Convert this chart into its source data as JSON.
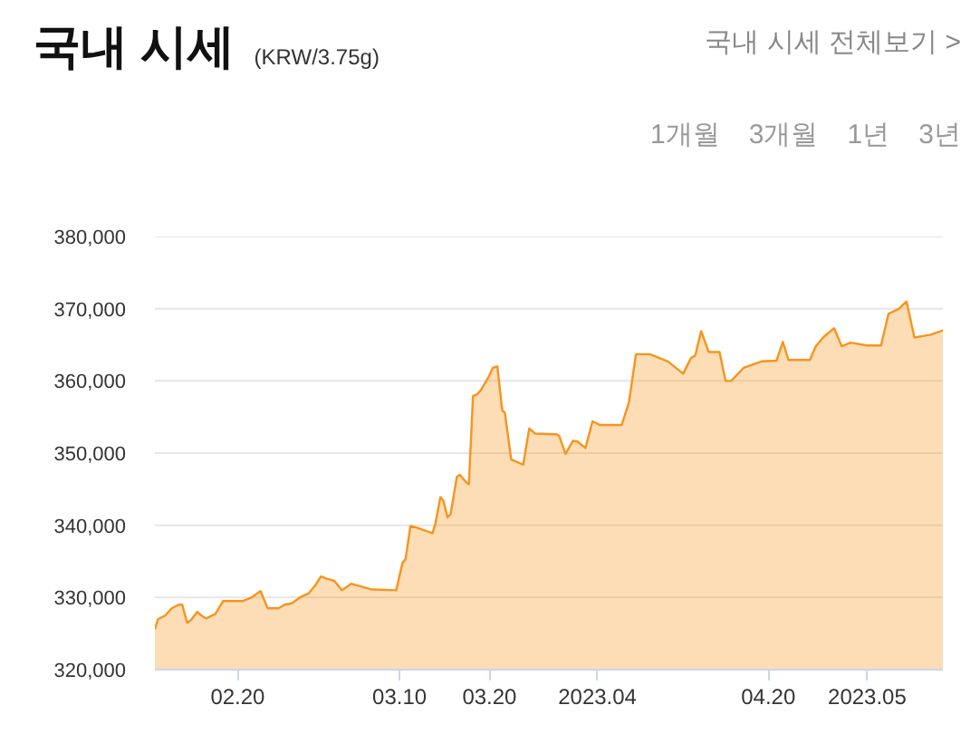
{
  "chart_data": {
    "type": "area",
    "title": "국내 시세",
    "subtitle": "(KRW/3.75g)",
    "annotations": [
      "국내 시세 전체보기 >",
      "1개월",
      "3개월",
      "1년",
      "3년"
    ],
    "x": [
      "2023-02-10T19:00",
      "2023-02-11T03:00",
      "2023-02-11T23:00",
      "2023-02-12T16:00",
      "2023-02-13T11:00",
      "2023-02-13T20:00",
      "2023-02-14T09:00",
      "2023-02-14T20:00",
      "2023-02-15T12:00",
      "2023-02-16T04:00",
      "2023-02-16T12:00",
      "2023-02-17T12:00",
      "2023-02-18T09:00",
      "2023-02-20T13:00",
      "2023-02-21T13:00",
      "2023-02-22T13:00",
      "2023-02-23T08:00",
      "2023-02-24T13:00",
      "2023-02-25T06:00",
      "2023-02-26T01:00",
      "2023-02-26T22:00",
      "2023-02-27T22:00",
      "2023-02-28T14:00",
      "2023-03-01T06:00",
      "2023-03-01T22:00",
      "2023-03-02T18:00",
      "2023-03-03T14:00",
      "2023-03-04T15:00",
      "2023-03-06T23:00",
      "2023-03-09T15:00",
      "2023-03-10T08:00",
      "2023-03-10T16:00",
      "2023-03-11T05:00",
      "2023-03-11T21:00",
      "2023-03-13T16:00",
      "2023-03-14T00:00",
      "2023-03-14T13:00",
      "2023-03-14T21:00",
      "2023-03-15T08:00",
      "2023-03-15T16:00",
      "2023-03-16T09:00",
      "2023-03-16T17:00",
      "2023-03-17T09:00",
      "2023-03-17T17:00",
      "2023-03-18T04:00",
      "2023-03-18T14:00",
      "2023-03-19T01:00",
      "2023-03-19T22:00",
      "2023-03-20T09:00",
      "2023-03-20T21:00",
      "2023-03-21T10:00",
      "2023-03-21T17:00",
      "2023-03-22T10:00",
      "2023-03-23T18:00",
      "2023-03-24T10:00",
      "2023-03-25T02:00",
      "2023-03-27T11:00",
      "2023-03-27T18:00",
      "2023-03-28T11:00",
      "2023-03-29T07:00",
      "2023-03-29T19:00",
      "2023-03-30T16:00",
      "2023-03-31T11:00",
      "2023-04-01T06:00",
      "2023-04-03T17:00",
      "2023-04-04T12:00",
      "2023-04-05T07:00",
      "2023-04-06T20:00",
      "2023-04-08T20:00",
      "2023-04-10T13:00",
      "2023-04-11T10:00",
      "2023-04-11T21:00",
      "2023-04-12T13:00",
      "2023-04-13T09:00",
      "2023-04-14T14:00",
      "2023-04-15T06:00",
      "2023-04-15T21:00",
      "2023-04-17T06:00",
      "2023-04-19T06:00",
      "2023-04-20T22:00",
      "2023-04-21T15:00",
      "2023-04-22T06:00",
      "2023-04-24T15:00",
      "2023-04-25T07:00",
      "2023-04-26T04:00",
      "2023-04-27T08:00",
      "2023-04-28T04:00",
      "2023-04-29T04:00",
      "2023-05-01T00:00",
      "2023-05-02T13:00",
      "2023-05-03T09:00",
      "2023-05-04T13:00",
      "2023-05-05T09:00",
      "2023-05-06T06:00",
      "2023-05-08T01:00",
      "2023-05-09T10:00"
    ],
    "series": [
      {
        "color": "#f7941d",
        "values": [
          325600,
          327000,
          327500,
          328500,
          329000,
          329000,
          326500,
          326900,
          328000,
          327300,
          327100,
          327700,
          329500,
          329500,
          330000,
          330900,
          328500,
          328500,
          329000,
          329200,
          330000,
          330600,
          331600,
          332900,
          332600,
          332300,
          331000,
          331900,
          331100,
          331000,
          334800,
          335300,
          339900,
          339700,
          338900,
          340300,
          343900,
          343400,
          341100,
          341500,
          346700,
          347000,
          346000,
          345700,
          357900,
          358100,
          358700,
          360600,
          361800,
          362000,
          355900,
          355600,
          349100,
          348400,
          353400,
          352700,
          352600,
          352400,
          349900,
          351700,
          351600,
          350700,
          354400,
          353900,
          353900,
          357000,
          363700,
          363700,
          362700,
          361000,
          363200,
          363500,
          366900,
          364000,
          364000,
          360000,
          360000,
          361800,
          362700,
          362800,
          365400,
          362900,
          362900,
          364800,
          366100,
          367300,
          364800,
          365300,
          364900,
          364900,
          369300,
          370000,
          371000,
          366000,
          366400,
          367000
        ]
      }
    ],
    "xlim": [
      "2023-02-10T19:00",
      "2023-05-09T10:00"
    ],
    "xticks": [
      {
        "value": "2023-02-20",
        "label": "02.20"
      },
      {
        "value": "2023-03-10",
        "label": "03.10"
      },
      {
        "value": "2023-03-20",
        "label": "03.20"
      },
      {
        "value": "2023-04-01",
        "label": "2023.04"
      },
      {
        "value": "2023-04-20",
        "label": "04.20"
      },
      {
        "value": "2023-05-01",
        "label": "2023.05"
      }
    ],
    "ylim": [
      320000,
      380000
    ],
    "yticks": [
      {
        "value": 320000,
        "label": "320,000"
      },
      {
        "value": 330000,
        "label": "330,000"
      },
      {
        "value": 340000,
        "label": "340,000"
      },
      {
        "value": 350000,
        "label": "350,000"
      },
      {
        "value": 360000,
        "label": "360,000"
      },
      {
        "value": 370000,
        "label": "370,000"
      },
      {
        "value": 380000,
        "label": "380,000"
      }
    ],
    "grid": "y"
  }
}
